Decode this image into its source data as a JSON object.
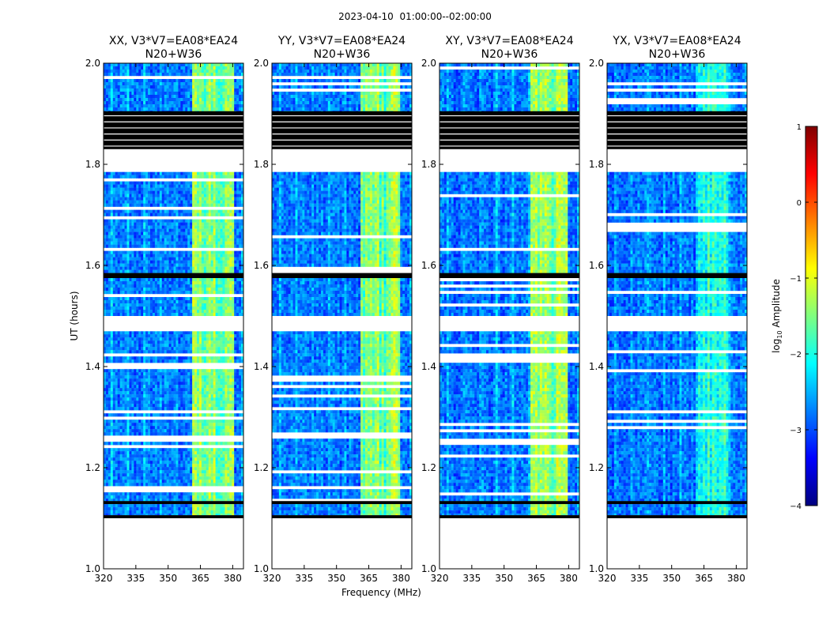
{
  "chart_data": {
    "type": "heatmap",
    "suptitle": "2023-04-10  01:00:00--02:00:00",
    "xlabel": "Frequency (MHz)",
    "ylabel": "UT (hours)",
    "xlim": [
      320,
      385
    ],
    "ylim": [
      1.0,
      2.0
    ],
    "xticks": [
      320,
      335,
      350,
      365,
      380
    ],
    "yticks": [
      1.0,
      1.2,
      1.4,
      1.6,
      1.8,
      2.0
    ],
    "ytick_labels": [
      "1.0",
      "1.2",
      "1.4",
      "1.6",
      "1.8",
      "2.0"
    ],
    "panels": [
      {
        "title": "XX, V3*V7=EA08*EA24",
        "subtitle": "N20+W36",
        "bright_band": [
          361,
          381
        ],
        "bright_level": 0.62
      },
      {
        "title": "YY, V3*V7=EA08*EA24",
        "subtitle": "N20+W36",
        "bright_band": [
          361,
          380
        ],
        "bright_level": 0.6
      },
      {
        "title": "XY, V3*V7=EA08*EA24",
        "subtitle": "N20+W36",
        "bright_band": [
          362,
          380
        ],
        "bright_level": 0.64
      },
      {
        "title": "YX, V3*V7=EA08*EA24",
        "subtitle": "N20+W36",
        "bright_band": [
          362,
          376
        ],
        "bright_level": 0.5
      }
    ],
    "flag_blocks": [
      [
        1.0,
        1.1
      ],
      [
        1.47,
        1.5
      ],
      [
        1.785,
        1.83
      ]
    ],
    "black_bands": [
      [
        1.1,
        1.106
      ],
      [
        1.128,
        1.134
      ],
      [
        1.575,
        1.585
      ],
      [
        1.828,
        1.905
      ]
    ],
    "data_segments": [
      [
        1.106,
        1.128
      ],
      [
        1.134,
        1.47
      ],
      [
        1.5,
        1.575
      ],
      [
        1.585,
        1.785
      ],
      [
        1.905,
        2.0
      ]
    ],
    "colorbar": {
      "label": "log10 Amplitude",
      "label_main": "log",
      "label_sub": "10",
      "label_rest": " Amplitude",
      "vmin": -4,
      "vmax": 1,
      "ticks": [
        -4,
        -3,
        -2,
        -1,
        0,
        1
      ],
      "tick_labels": [
        "−4",
        "−3",
        "−2",
        "−1",
        "0",
        "1"
      ],
      "colormap": "jet",
      "colors": [
        "#00007f",
        "#0000ff",
        "#007fff",
        "#00ffff",
        "#7fff7f",
        "#ffff00",
        "#ff7f00",
        "#ff0000",
        "#7f0000"
      ]
    }
  }
}
